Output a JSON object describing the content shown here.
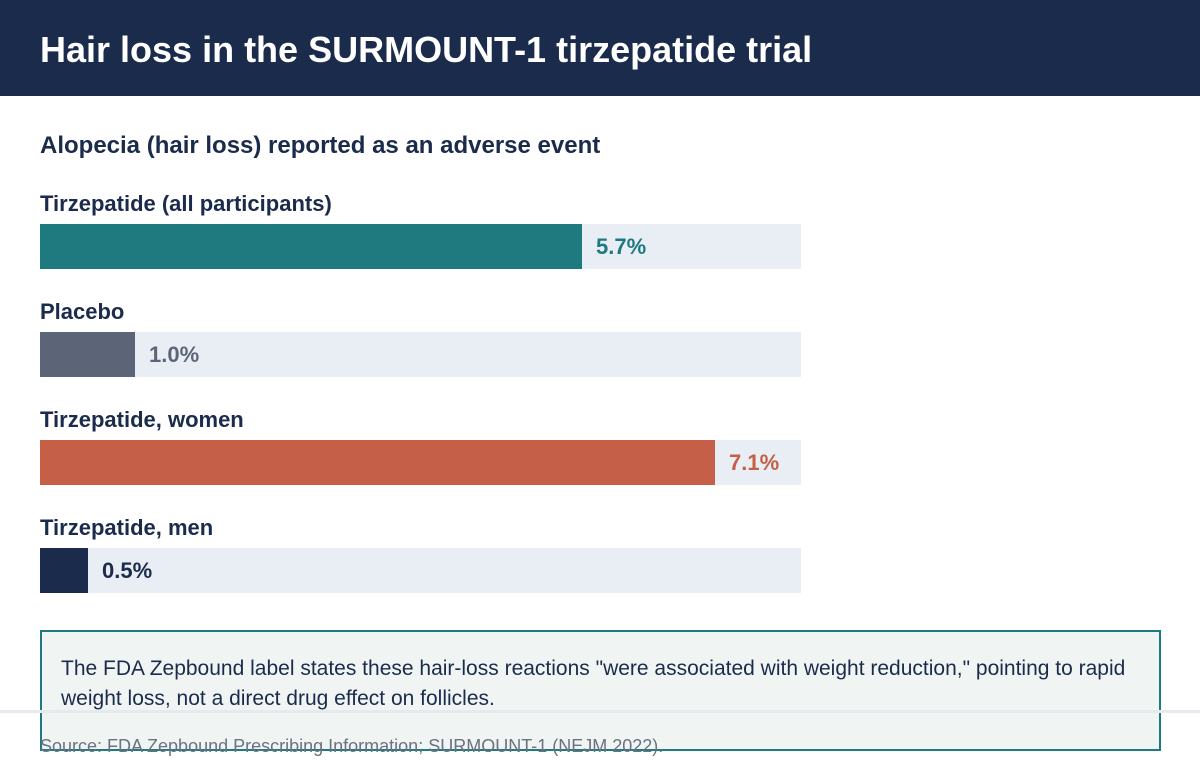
{
  "header": {
    "title": "Hair loss in the SURMOUNT-1 tirzepatide trial"
  },
  "chart_data": {
    "type": "bar",
    "orientation": "horizontal",
    "title": "Alopecia (hair loss) reported as an adverse event",
    "categories": [
      "Tirzepatide (all participants)",
      "Placebo",
      "Tirzepatide, women",
      "Tirzepatide, men"
    ],
    "values": [
      5.7,
      1.0,
      7.1,
      0.5
    ],
    "value_labels": [
      "5.7%",
      "1.0%",
      "7.1%",
      "0.5%"
    ],
    "colors": [
      "#1f7a80",
      "#5c6577",
      "#c55f48",
      "#1b2b4b"
    ],
    "track_color": "#e9edf4",
    "xlim": [
      0,
      8
    ],
    "grid": false,
    "legend": "none"
  },
  "note": {
    "text": "The FDA Zepbound label states these hair-loss reactions \"were associated with weight reduction,\" pointing to rapid weight loss, not a direct drug effect on follicles."
  },
  "source": "Source: FDA Zepbound Prescribing Information; SURMOUNT-1 (NEJM 2022)."
}
